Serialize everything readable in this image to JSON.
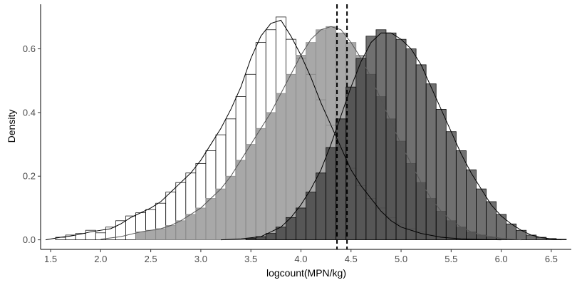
{
  "chart_data": {
    "type": "histogram-density",
    "xlabel": "logcount(MPN/kg)",
    "ylabel": "Density",
    "xlim": [
      1.4,
      6.7
    ],
    "ylim": [
      -0.03,
      0.74
    ],
    "x_ticks": [
      1.5,
      2.0,
      2.5,
      3.0,
      3.5,
      4.0,
      4.5,
      5.0,
      5.5,
      6.0,
      6.5
    ],
    "x_tick_labels": [
      "1.5",
      "2.0",
      "2.5",
      "3.0",
      "3.5",
      "4.0",
      "4.5",
      "5.0",
      "5.5",
      "6.0",
      "6.5"
    ],
    "y_ticks": [
      0.0,
      0.2,
      0.4,
      0.6
    ],
    "y_tick_labels": [
      "0.0",
      "0.2",
      "0.4",
      "0.6"
    ],
    "bin_width": 0.1,
    "grid": false,
    "legend": "none",
    "vlines": [
      {
        "x": 4.36,
        "style": "dashed",
        "color": "#000000"
      },
      {
        "x": 4.46,
        "style": "dashed",
        "color": "#000000"
      }
    ],
    "series": [
      {
        "fill": "#ffffff",
        "fill_opacity": 1.0,
        "bin_stroke": "#000000",
        "line_color": "#000000",
        "bins_x": [
          1.6,
          1.7,
          1.8,
          1.9,
          2.0,
          2.1,
          2.2,
          2.3,
          2.4,
          2.5,
          2.6,
          2.7,
          2.8,
          2.9,
          3.0,
          3.1,
          3.2,
          3.3,
          3.4,
          3.5,
          3.6,
          3.7,
          3.8,
          3.9,
          4.0,
          4.1,
          4.2,
          4.3,
          4.4,
          4.5,
          4.6,
          4.7,
          4.8,
          4.9,
          5.0,
          5.1,
          5.2,
          5.3,
          5.4,
          5.5,
          5.6,
          5.7,
          5.8,
          5.9
        ],
        "bins_y": [
          0.008,
          0.015,
          0.02,
          0.03,
          0.022,
          0.04,
          0.06,
          0.075,
          0.085,
          0.095,
          0.115,
          0.15,
          0.18,
          0.21,
          0.24,
          0.28,
          0.33,
          0.38,
          0.45,
          0.52,
          0.62,
          0.66,
          0.7,
          0.63,
          0.57,
          0.52,
          0.44,
          0.36,
          0.29,
          0.225,
          0.17,
          0.13,
          0.1,
          0.07,
          0.05,
          0.035,
          0.025,
          0.015,
          0.01,
          0.006,
          0.004,
          0.003,
          0.002,
          0.001
        ],
        "density_x": [
          1.45,
          1.6,
          1.7,
          1.8,
          1.9,
          2.0,
          2.1,
          2.2,
          2.3,
          2.4,
          2.5,
          2.6,
          2.7,
          2.8,
          2.9,
          3.0,
          3.1,
          3.2,
          3.3,
          3.4,
          3.5,
          3.6,
          3.7,
          3.8,
          3.9,
          4.0,
          4.1,
          4.2,
          4.3,
          4.4,
          4.5,
          4.6,
          4.7,
          4.8,
          4.9,
          5.0,
          5.2,
          5.4,
          5.6,
          5.8,
          6.0
        ],
        "density_y": [
          0.0,
          0.008,
          0.012,
          0.018,
          0.025,
          0.03,
          0.035,
          0.05,
          0.07,
          0.085,
          0.1,
          0.12,
          0.15,
          0.18,
          0.21,
          0.25,
          0.3,
          0.35,
          0.41,
          0.48,
          0.57,
          0.64,
          0.68,
          0.69,
          0.64,
          0.58,
          0.51,
          0.43,
          0.36,
          0.29,
          0.22,
          0.17,
          0.13,
          0.09,
          0.06,
          0.04,
          0.02,
          0.008,
          0.003,
          0.001,
          0.0
        ]
      },
      {
        "fill": "#999999",
        "fill_opacity": 0.85,
        "bin_stroke": "#888888",
        "line_color": "#555555",
        "bins_x": [
          2.4,
          2.5,
          2.6,
          2.7,
          2.8,
          2.9,
          3.0,
          3.1,
          3.2,
          3.3,
          3.4,
          3.5,
          3.6,
          3.7,
          3.8,
          3.9,
          4.0,
          4.1,
          4.2,
          4.3,
          4.4,
          4.5,
          4.6,
          4.7,
          4.8,
          4.9,
          5.0,
          5.1,
          5.2,
          5.3,
          5.4,
          5.5,
          5.6,
          5.7,
          5.8,
          5.9,
          6.0
        ],
        "bins_y": [
          0.025,
          0.03,
          0.035,
          0.045,
          0.06,
          0.08,
          0.1,
          0.13,
          0.16,
          0.2,
          0.25,
          0.3,
          0.35,
          0.4,
          0.46,
          0.52,
          0.58,
          0.62,
          0.66,
          0.67,
          0.65,
          0.62,
          0.58,
          0.52,
          0.45,
          0.38,
          0.31,
          0.24,
          0.18,
          0.13,
          0.09,
          0.06,
          0.04,
          0.025,
          0.015,
          0.008,
          0.004
        ],
        "density_x": [
          2.0,
          2.2,
          2.4,
          2.5,
          2.6,
          2.7,
          2.8,
          2.9,
          3.0,
          3.1,
          3.2,
          3.3,
          3.4,
          3.5,
          3.6,
          3.7,
          3.8,
          3.9,
          4.0,
          4.1,
          4.2,
          4.3,
          4.4,
          4.5,
          4.6,
          4.7,
          4.8,
          4.9,
          5.0,
          5.1,
          5.2,
          5.3,
          5.4,
          5.5,
          5.6,
          5.7,
          5.8,
          6.0,
          6.2
        ],
        "density_y": [
          0.002,
          0.01,
          0.025,
          0.03,
          0.035,
          0.045,
          0.06,
          0.08,
          0.1,
          0.13,
          0.16,
          0.2,
          0.25,
          0.3,
          0.35,
          0.4,
          0.46,
          0.52,
          0.58,
          0.63,
          0.66,
          0.67,
          0.66,
          0.62,
          0.57,
          0.51,
          0.44,
          0.37,
          0.3,
          0.24,
          0.18,
          0.13,
          0.09,
          0.06,
          0.04,
          0.025,
          0.015,
          0.005,
          0.0
        ]
      },
      {
        "fill": "#333333",
        "fill_opacity": 0.7,
        "bin_stroke": "#000000",
        "line_color": "#000000",
        "bins_x": [
          3.5,
          3.6,
          3.7,
          3.8,
          3.9,
          4.0,
          4.1,
          4.2,
          4.3,
          4.4,
          4.5,
          4.6,
          4.7,
          4.8,
          4.9,
          5.0,
          5.1,
          5.2,
          5.3,
          5.4,
          5.5,
          5.6,
          5.7,
          5.8,
          5.9,
          6.0,
          6.1,
          6.2,
          6.3,
          6.4,
          6.5,
          6.6
        ],
        "bins_y": [
          0.005,
          0.01,
          0.02,
          0.04,
          0.07,
          0.1,
          0.15,
          0.21,
          0.29,
          0.38,
          0.48,
          0.57,
          0.64,
          0.66,
          0.65,
          0.63,
          0.6,
          0.55,
          0.49,
          0.41,
          0.34,
          0.28,
          0.22,
          0.16,
          0.12,
          0.08,
          0.05,
          0.03,
          0.015,
          0.008,
          0.004,
          0.002
        ],
        "density_x": [
          3.2,
          3.4,
          3.6,
          3.8,
          3.9,
          4.0,
          4.1,
          4.2,
          4.3,
          4.4,
          4.5,
          4.6,
          4.7,
          4.8,
          4.9,
          5.0,
          5.1,
          5.2,
          5.3,
          5.4,
          5.5,
          5.6,
          5.7,
          5.8,
          5.9,
          6.0,
          6.1,
          6.2,
          6.3,
          6.4,
          6.5,
          6.6
        ],
        "density_y": [
          0.0,
          0.003,
          0.01,
          0.04,
          0.07,
          0.11,
          0.16,
          0.22,
          0.3,
          0.39,
          0.48,
          0.56,
          0.62,
          0.65,
          0.65,
          0.63,
          0.6,
          0.55,
          0.48,
          0.41,
          0.34,
          0.27,
          0.21,
          0.16,
          0.11,
          0.075,
          0.05,
          0.03,
          0.015,
          0.007,
          0.003,
          0.0
        ]
      }
    ]
  }
}
